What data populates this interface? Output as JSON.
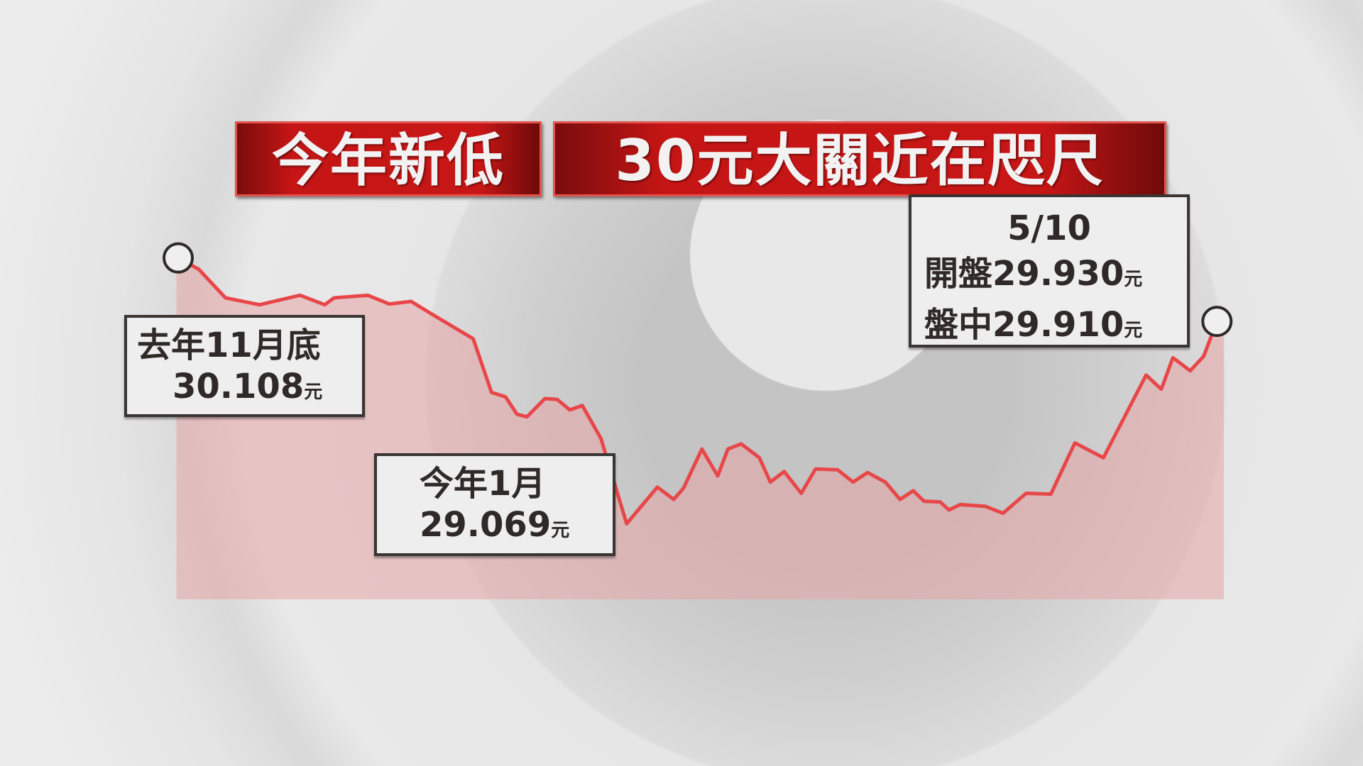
{
  "headline": {
    "part1": "今年新低",
    "part2": "30元大關近在咫尺",
    "color": "#c51515"
  },
  "annotations": {
    "start": {
      "line1": "去年11月底",
      "value": "30.108",
      "unit": "元"
    },
    "low": {
      "line1": "今年1月",
      "value": "29.069",
      "unit": "元"
    },
    "latest": {
      "date": "5/10",
      "open_label": "開盤",
      "open_value": "29.930",
      "intraday_label": "盤中",
      "intraday_value": "29.910",
      "unit": "元"
    }
  },
  "chart_data": {
    "type": "area",
    "title": "",
    "xlabel": "",
    "ylabel": "",
    "line_color": "#e8474a",
    "fill_color": "#e6a4a6",
    "grid": false,
    "values": [
      30.108,
      30.064,
      29.952,
      29.925,
      29.962,
      29.925,
      29.952,
      29.962,
      29.928,
      29.938,
      29.887,
      29.792,
      29.582,
      29.565,
      29.497,
      29.487,
      29.558,
      29.555,
      29.514,
      29.531,
      29.402,
      29.069,
      29.212,
      29.164,
      29.208,
      29.361,
      29.256,
      29.361,
      29.381,
      29.327,
      29.232,
      29.273,
      29.188,
      29.283,
      29.28,
      29.232,
      29.269,
      29.232,
      29.164,
      29.198,
      29.157,
      29.154,
      29.123,
      29.144,
      29.137,
      29.11,
      29.188,
      29.185,
      29.385,
      29.327,
      29.65,
      29.595,
      29.718,
      29.667,
      29.724,
      29.86
    ]
  }
}
